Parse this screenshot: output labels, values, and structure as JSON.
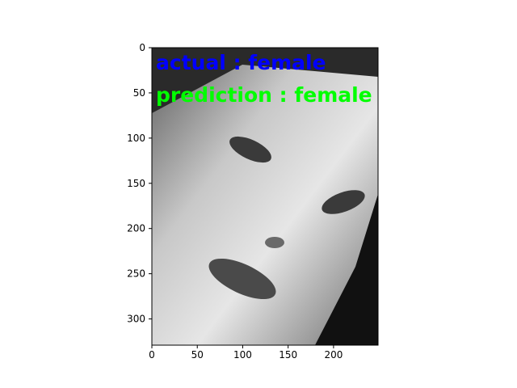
{
  "chart_data": {
    "type": "image",
    "xlim": [
      0,
      249
    ],
    "ylim": [
      329,
      0
    ],
    "xticks": [
      0,
      50,
      100,
      150,
      200
    ],
    "yticks": [
      0,
      50,
      100,
      150,
      200,
      250,
      300
    ],
    "annotations": [
      {
        "text": "actual : female",
        "color": "#0000ff"
      },
      {
        "text": "prediction : female",
        "color": "#00ff00"
      }
    ]
  }
}
